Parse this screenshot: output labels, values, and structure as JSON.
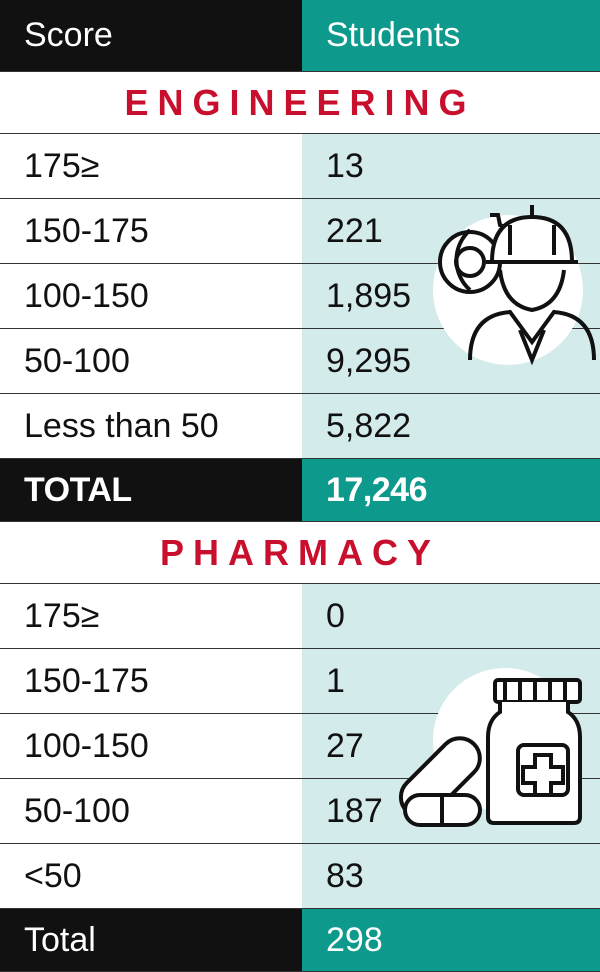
{
  "header": {
    "columns": [
      "Score",
      "Students"
    ]
  },
  "sections": [
    {
      "title": "ENGINEERING",
      "rows": [
        [
          "175≥",
          "13"
        ],
        [
          "150-175",
          "221"
        ],
        [
          "100-150",
          "1,895"
        ],
        [
          "50-100",
          "9,295"
        ],
        [
          "Less than 50",
          "5,822"
        ]
      ],
      "total": [
        "TOTAL",
        "17,246"
      ]
    },
    {
      "title": "PHARMACY",
      "rows": [
        [
          "175≥",
          "0"
        ],
        [
          "150-175",
          "1"
        ],
        [
          "100-150",
          "27"
        ],
        [
          "50-100",
          "187"
        ],
        [
          "<50",
          "83"
        ]
      ],
      "total": [
        "Total",
        "298"
      ]
    }
  ]
}
